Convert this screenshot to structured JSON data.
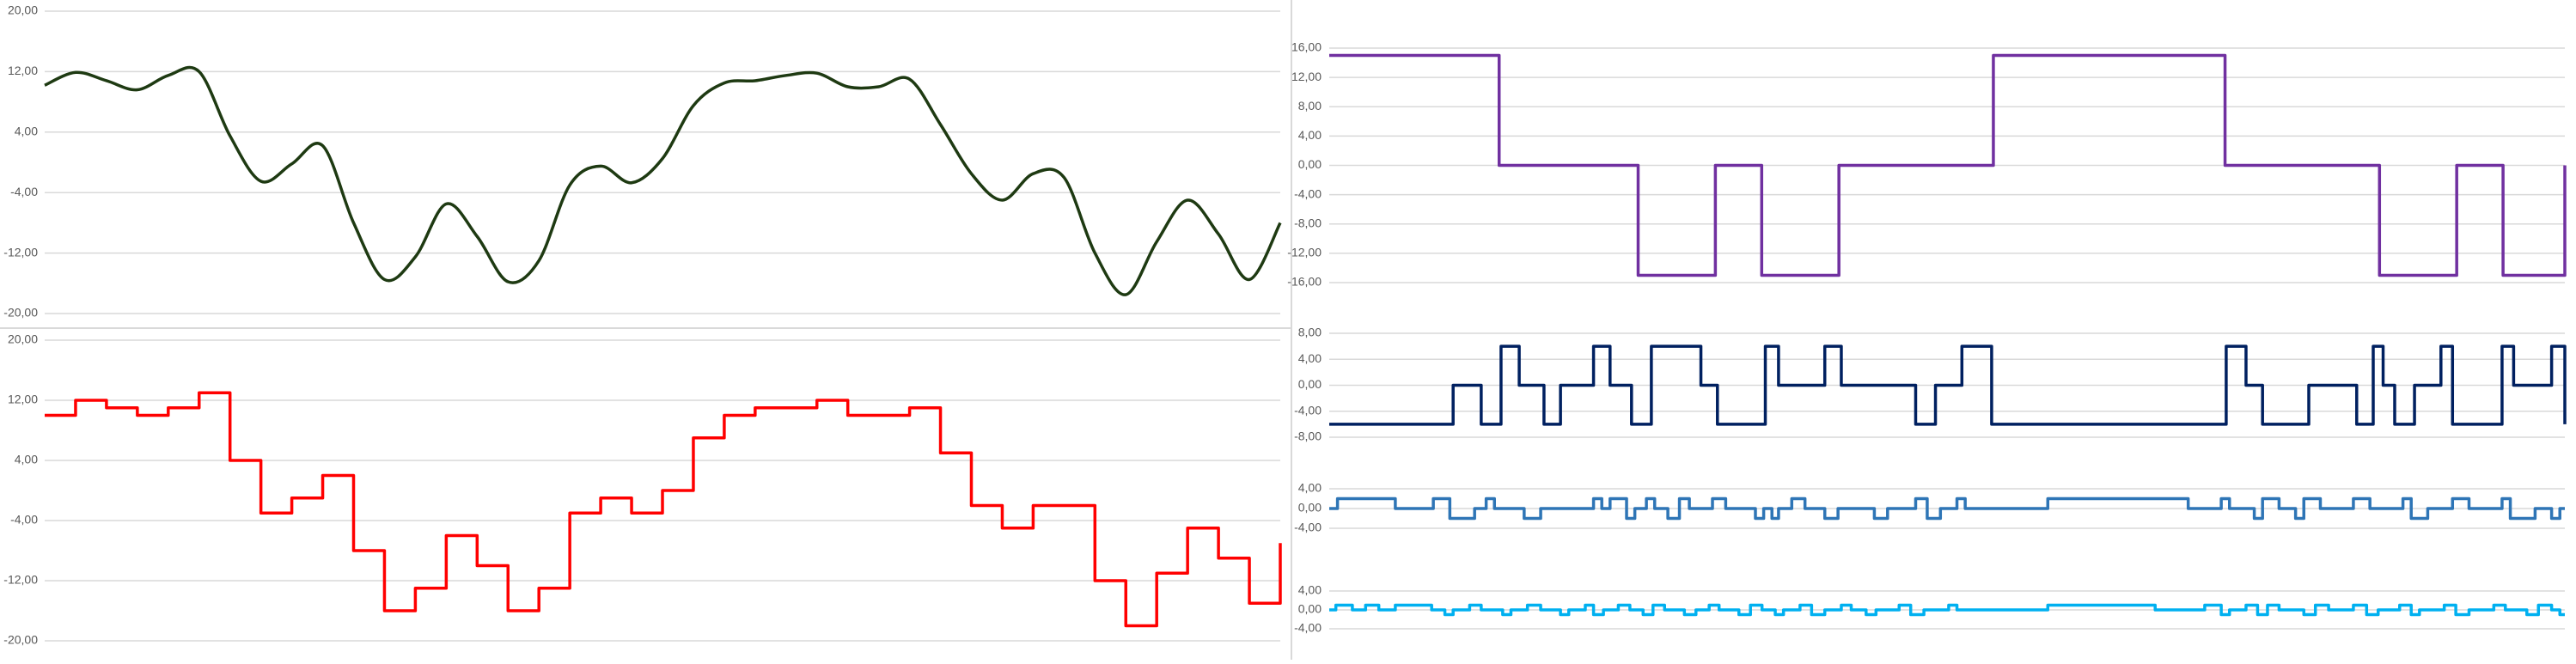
{
  "chart_data": [
    {
      "type": "line",
      "color": "#1e3a12",
      "step": false,
      "ylim": [
        -20,
        20
      ],
      "yticks": [
        {
          "value": 20,
          "label": "20,00"
        },
        {
          "value": 12,
          "label": "12,00"
        },
        {
          "value": 4,
          "label": "4,00"
        },
        {
          "value": -4,
          "label": "-4,00"
        },
        {
          "value": -12,
          "label": "-12,00"
        },
        {
          "value": -20,
          "label": "-20,00"
        }
      ],
      "values": [
        10.2,
        11.9,
        10.8,
        9.6,
        11.5,
        12,
        3.5,
        -2.5,
        -0.2,
        2.2,
        -8,
        -15.5,
        -12.5,
        -5.5,
        -9.8,
        -15.8,
        -13,
        -3,
        -0.5,
        -2.7,
        0.5,
        7.5,
        10.5,
        10.8,
        11.5,
        11.8,
        10,
        10,
        11,
        5,
        -1.5,
        -5,
        -1.5,
        -2,
        -12,
        -17.5,
        -10.5,
        -5,
        -9.5,
        -15.5,
        -8
      ],
      "grid": true
    },
    {
      "type": "line",
      "color": "#ff0000",
      "step": true,
      "ylim": [
        -20,
        20
      ],
      "yticks": [
        {
          "value": 20,
          "label": "20,00"
        },
        {
          "value": 12,
          "label": "12,00"
        },
        {
          "value": 4,
          "label": "4,00"
        },
        {
          "value": -4,
          "label": "-4,00"
        },
        {
          "value": -12,
          "label": "-12,00"
        },
        {
          "value": -20,
          "label": "-20,00"
        }
      ],
      "values": [
        10,
        12,
        11,
        10,
        11,
        13,
        4,
        -3,
        -1,
        2,
        -8,
        -16,
        -13,
        -6,
        -10,
        -16,
        -13,
        -3,
        -1,
        -3,
        0,
        7,
        10,
        11,
        11,
        12,
        10,
        10,
        11,
        5,
        -2,
        -5,
        -2,
        -2,
        -12,
        -18,
        -11,
        -5,
        -9,
        -15,
        -7
      ],
      "grid": true
    },
    {
      "type": "line",
      "color": "#7030a0",
      "step": true,
      "ylim": [
        -16,
        16
      ],
      "xlim": [
        0,
        80
      ],
      "yticks": [
        {
          "value": 16,
          "label": "16,00"
        },
        {
          "value": 12,
          "label": "12,00"
        },
        {
          "value": 8,
          "label": "8,00"
        },
        {
          "value": 4,
          "label": "4,00"
        },
        {
          "value": 0,
          "label": "0,00"
        },
        {
          "value": -4,
          "label": "-4,00"
        },
        {
          "value": -8,
          "label": "-8,00"
        },
        {
          "value": -12,
          "label": "-12,00"
        },
        {
          "value": -16,
          "label": "-16,00"
        }
      ],
      "x": [
        0,
        11,
        20,
        25,
        28,
        33,
        43,
        58,
        68,
        73,
        76,
        80
      ],
      "values": [
        15,
        0,
        -15,
        0,
        -15,
        0,
        15,
        0,
        -15,
        0,
        -15,
        0
      ],
      "grid": true
    },
    {
      "type": "line",
      "color": "#002060",
      "step": true,
      "ylim": [
        -8,
        8
      ],
      "xlim": [
        0,
        748
      ],
      "yticks": [
        {
          "value": 8,
          "label": "8,00"
        },
        {
          "value": 4,
          "label": "4,00"
        },
        {
          "value": 0,
          "label": "0,00"
        },
        {
          "value": -4,
          "label": "-4,00"
        },
        {
          "value": -8,
          "label": "-8,00"
        }
      ],
      "x": [
        0,
        75,
        92,
        104,
        115,
        130,
        140,
        160,
        170,
        183,
        195,
        225,
        235,
        264,
        272,
        300,
        310,
        355,
        367,
        383,
        401,
        543,
        555,
        565,
        593,
        622,
        632,
        638,
        645,
        657,
        673,
        680,
        710,
        717,
        740,
        748
      ],
      "values": [
        -6,
        0,
        -6,
        6,
        0,
        -6,
        0,
        6,
        0,
        -6,
        6,
        0,
        -6,
        6,
        0,
        6,
        0,
        -6,
        0,
        6,
        -6,
        6,
        0,
        -6,
        0,
        -6,
        6,
        0,
        -6,
        0,
        6,
        -6,
        6,
        0,
        6,
        -6
      ],
      "grid": true
    },
    {
      "type": "line",
      "color": "#2e75b6",
      "step": true,
      "ylim": [
        -4,
        4
      ],
      "xlim": [
        0,
        748
      ],
      "yticks": [
        {
          "value": 4,
          "label": "4,00"
        },
        {
          "value": 0,
          "label": "0,00"
        },
        {
          "value": -4,
          "label": "-4,00"
        }
      ],
      "x": [
        0,
        5,
        40,
        63,
        73,
        88,
        95,
        100,
        118,
        128,
        160,
        165,
        170,
        180,
        185,
        192,
        197,
        205,
        212,
        218,
        232,
        240,
        258,
        263,
        268,
        272,
        280,
        288,
        300,
        308,
        330,
        338,
        355,
        362,
        370,
        380,
        385,
        435,
        520,
        540,
        545,
        560,
        565,
        575,
        585,
        590,
        600,
        620,
        630,
        650,
        655,
        665,
        680,
        690,
        710,
        715,
        730,
        740,
        745,
        748
      ],
      "values": [
        0,
        2,
        0,
        2,
        -2,
        0,
        2,
        0,
        -2,
        0,
        2,
        0,
        2,
        -2,
        0,
        2,
        0,
        -2,
        2,
        0,
        2,
        0,
        -2,
        0,
        -2,
        0,
        2,
        0,
        -2,
        0,
        -2,
        0,
        2,
        -2,
        0,
        2,
        0,
        2,
        0,
        2,
        0,
        -2,
        2,
        0,
        -2,
        2,
        0,
        2,
        0,
        2,
        -2,
        0,
        2,
        0,
        2,
        -2,
        0,
        -2,
        0,
        0
      ],
      "grid": true
    },
    {
      "type": "line",
      "color": "#00b0f0",
      "step": true,
      "ylim": [
        -4,
        4
      ],
      "xlim": [
        0,
        748
      ],
      "yticks": [
        {
          "value": 4,
          "label": "4,00"
        },
        {
          "value": 0,
          "label": "0,00"
        },
        {
          "value": -4,
          "label": "-4,00"
        }
      ],
      "x": [
        0,
        4,
        14,
        22,
        30,
        40,
        62,
        70,
        75,
        85,
        92,
        105,
        110,
        120,
        128,
        140,
        145,
        155,
        160,
        166,
        175,
        182,
        190,
        196,
        203,
        215,
        222,
        230,
        236,
        248,
        255,
        262,
        270,
        275,
        285,
        292,
        300,
        310,
        316,
        325,
        331,
        345,
        352,
        360,
        375,
        380,
        435,
        500,
        530,
        540,
        545,
        555,
        562,
        568,
        575,
        590,
        597,
        605,
        620,
        628,
        635,
        648,
        655,
        660,
        675,
        682,
        690,
        705,
        712,
        725,
        732,
        740,
        745,
        748
      ],
      "values": [
        0,
        1,
        0,
        1,
        0,
        1,
        0,
        -1,
        0,
        1,
        0,
        -1,
        0,
        1,
        0,
        -1,
        0,
        1,
        -1,
        0,
        1,
        0,
        -1,
        1,
        0,
        -1,
        0,
        1,
        0,
        -1,
        1,
        0,
        -1,
        0,
        1,
        -1,
        0,
        1,
        0,
        -1,
        0,
        1,
        -1,
        0,
        1,
        0,
        1,
        0,
        1,
        -1,
        0,
        1,
        -1,
        1,
        0,
        -1,
        1,
        0,
        1,
        -1,
        0,
        1,
        -1,
        0,
        1,
        -1,
        0,
        1,
        0,
        -1,
        1,
        0,
        -1,
        -1
      ],
      "grid": true
    }
  ]
}
